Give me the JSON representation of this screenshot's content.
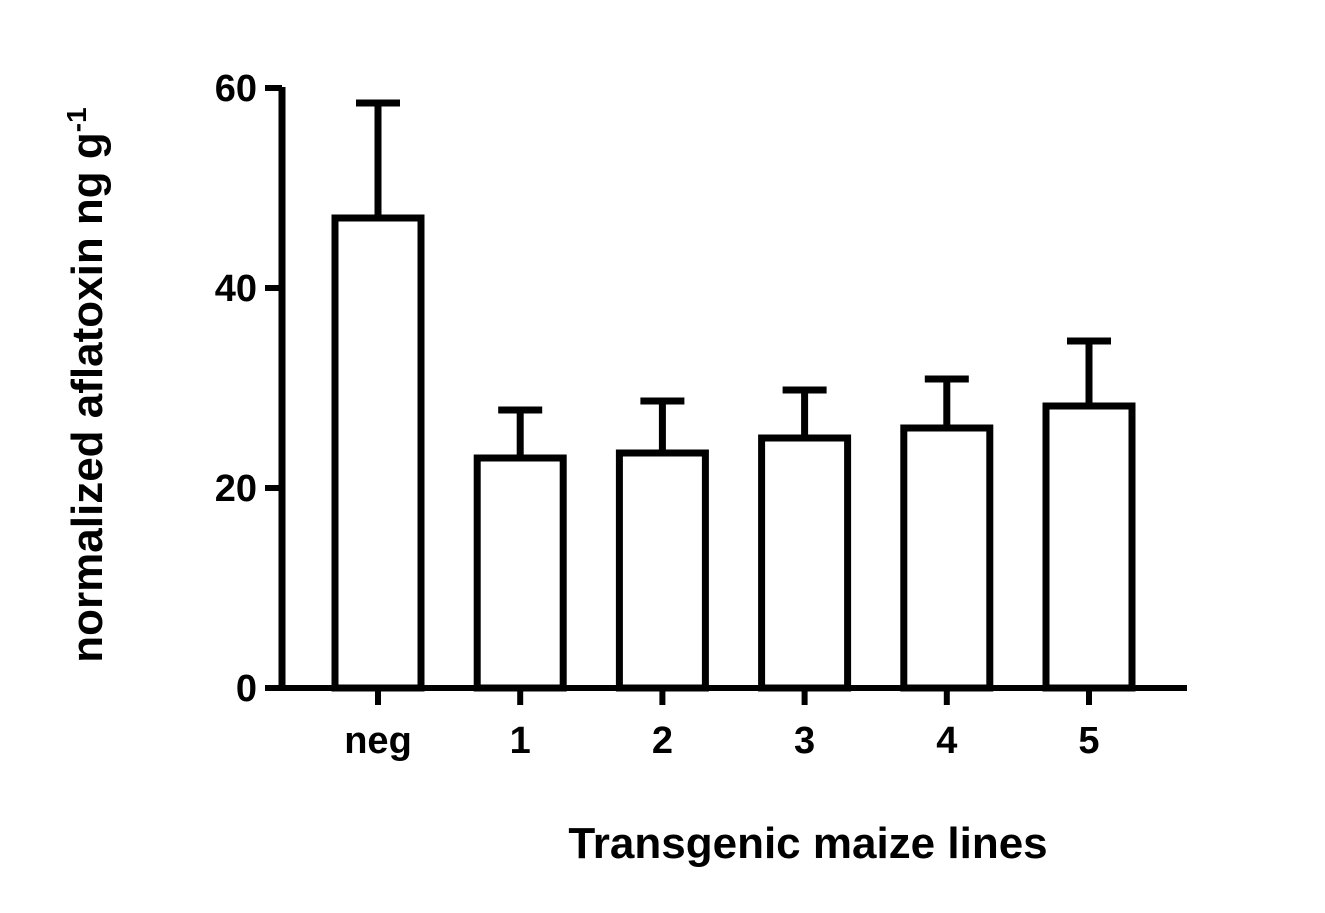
{
  "chart_data": {
    "type": "bar",
    "categories": [
      "neg",
      "1",
      "2",
      "3",
      "4",
      "5"
    ],
    "values": [
      47,
      23,
      23.5,
      25,
      26,
      28.2
    ],
    "errors": [
      11.5,
      4.8,
      5.2,
      4.8,
      4.9,
      6.5
    ],
    "xlabel": "Transgenic maize lines",
    "ylabel": "normalized aflatoxin ng g",
    "ylabel_superscript": "-1",
    "ylim": [
      0,
      60
    ],
    "yticks": [
      "0",
      "20",
      "40",
      "60"
    ],
    "grid": false,
    "legend": "none",
    "bar_fill": "#ffffff",
    "stroke_color": "#000000"
  }
}
